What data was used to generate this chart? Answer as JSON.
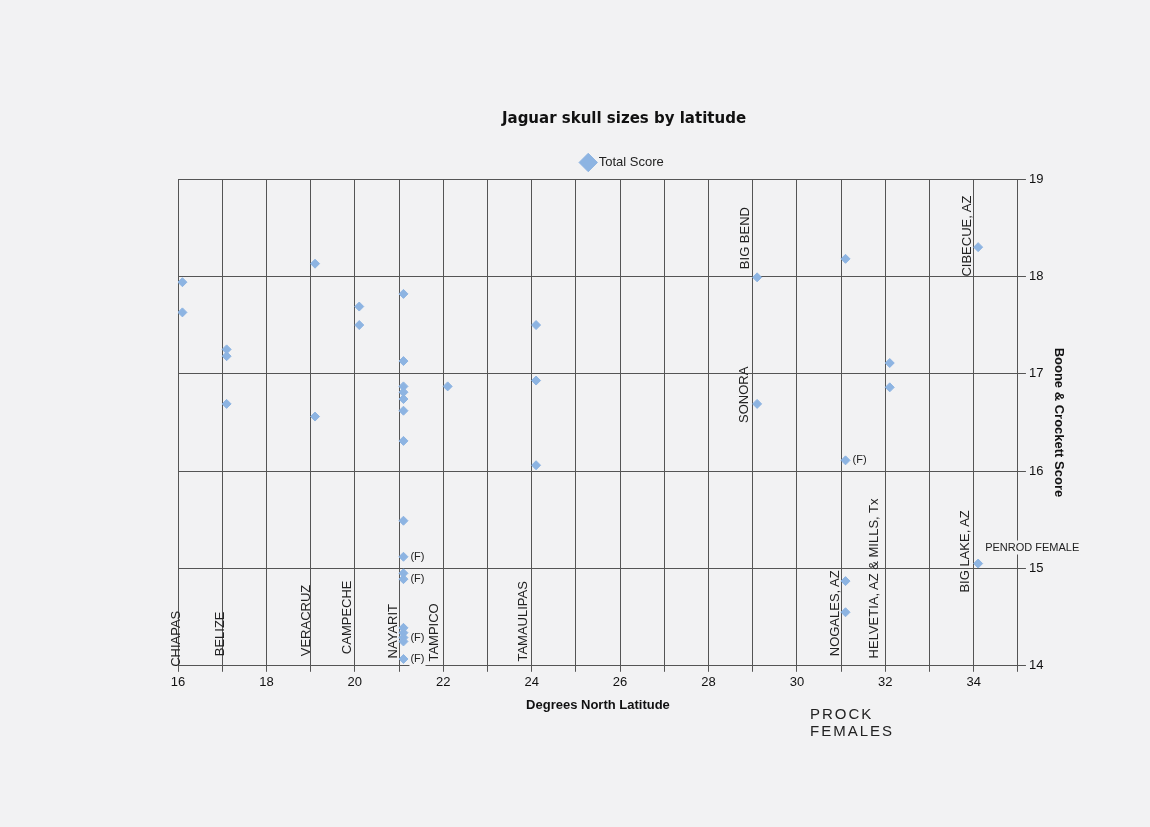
{
  "chart_data": {
    "type": "scatter",
    "title": "Jaguar skull sizes by latitude",
    "xlabel": "Degrees North Latitude",
    "ylabel": "Boone & Crockett Score",
    "xlim": [
      16,
      35
    ],
    "xticks": [
      16,
      {
        "value": 17,
        "label": null
      },
      18,
      {
        "value": 19,
        "label": null
      },
      20,
      {
        "value": 21,
        "label": null
      },
      22,
      {
        "value": 23,
        "label": null
      },
      24,
      {
        "value": 25,
        "label": null
      },
      26,
      {
        "value": 27,
        "label": null
      },
      28,
      {
        "value": 29,
        "label": null
      },
      30,
      {
        "value": 31,
        "label": null
      },
      32,
      {
        "value": 33,
        "label": null
      },
      34,
      {
        "value": 35,
        "label": null
      }
    ],
    "ylim": [
      14,
      19
    ],
    "yticks": [
      14,
      15,
      16,
      17,
      18,
      19
    ],
    "grid": true,
    "legend": "top",
    "marker": "diamond",
    "series": [
      {
        "name": "Total Score",
        "color": "#8db4e2",
        "x": [
          16.1,
          16.1,
          17.1,
          17.1,
          17.1,
          19.1,
          19.1,
          20.1,
          20.1,
          21.1,
          21.1,
          21.1,
          21.1,
          21.1,
          21.1,
          21.1,
          21.1,
          21.1,
          21.1,
          21.1,
          21.1,
          21.1,
          21.1,
          21.1,
          21.1,
          22.1,
          24.1,
          24.1,
          24.1,
          29.1,
          29.1,
          31.1,
          31.1,
          31.1,
          31.1,
          32.1,
          32.1,
          34.1,
          34.1
        ],
        "values": [
          17.94,
          17.63,
          17.25,
          17.18,
          16.69,
          18.13,
          16.56,
          17.69,
          17.5,
          17.82,
          17.13,
          16.87,
          16.81,
          16.74,
          16.62,
          16.31,
          15.49,
          15.12,
          14.95,
          14.89,
          14.39,
          14.34,
          14.29,
          14.25,
          14.07,
          16.87,
          17.5,
          16.93,
          16.06,
          17.99,
          16.69,
          18.18,
          16.11,
          14.87,
          14.55,
          17.11,
          16.86,
          18.3,
          15.05
        ],
        "value_labels": [
          null,
          null,
          null,
          null,
          null,
          null,
          null,
          null,
          null,
          null,
          null,
          null,
          null,
          null,
          null,
          null,
          null,
          "(F)",
          null,
          "(F)",
          null,
          null,
          "(F)",
          null,
          "(F)",
          null,
          null,
          null,
          null,
          null,
          null,
          null,
          "(F)",
          null,
          null,
          null,
          null,
          null,
          "PENROD FEMALE"
        ]
      }
    ],
    "annotations": [
      "CHIAPAS",
      "BELIZE",
      "VERACRUZ",
      "CAMPECHE",
      "NAYARIT",
      "TAMPICO",
      "TAMAULIPAS",
      "BIG BEND",
      "SONORA",
      "CIBECUE, AZ",
      "NOGALES, AZ",
      "HELVETIA, AZ & MILLS, Tx",
      "BIG LAKE, AZ",
      "PROCK FEMALES"
    ]
  }
}
